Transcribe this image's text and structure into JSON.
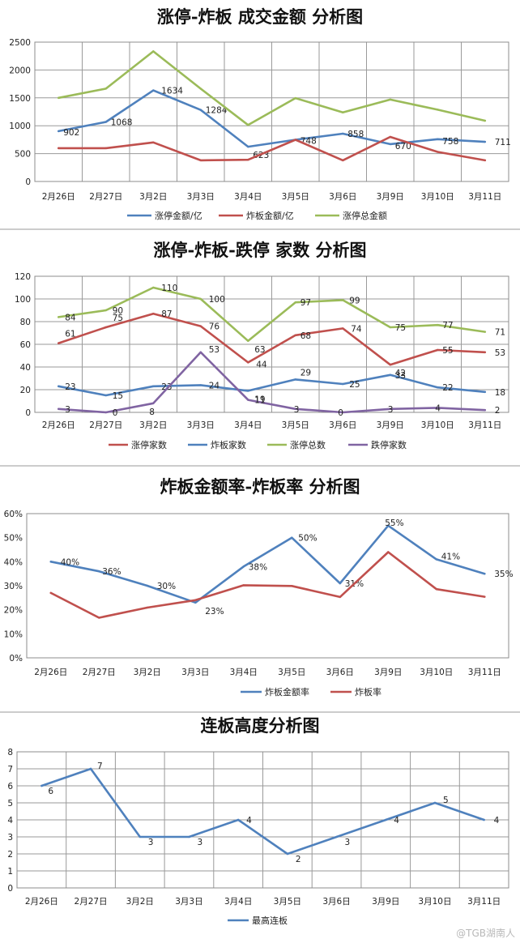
{
  "chart_data": [
    {
      "type": "line",
      "title": "涨停-炸板 成交金额 分析图",
      "categories": [
        "2月26日",
        "2月27日",
        "3月2日",
        "3月3日",
        "3月4日",
        "3月5日",
        "3月6日",
        "3月9日",
        "3月10日",
        "3月11日"
      ],
      "ylim": [
        0,
        2500
      ],
      "yticks": [
        0,
        500,
        1000,
        1500,
        2000,
        2500
      ],
      "ytick_labels": [
        "0",
        "500",
        "1000",
        "1500",
        "2000",
        "2500"
      ],
      "grid": true,
      "legend": "bottom",
      "series": [
        {
          "name": "涨停金额/亿",
          "color": "#4F81BD",
          "values": [
            902,
            1068,
            1634,
            1284,
            623,
            748,
            858,
            670,
            758,
            711
          ],
          "labels": [
            "902",
            "1068",
            "1634",
            "1284",
            "623",
            "748",
            "858",
            "670",
            "758",
            "711"
          ]
        },
        {
          "name": "炸板金额/亿",
          "color": "#C0504D",
          "values": [
            598,
            598,
            700,
            380,
            390,
            748,
            380,
            800,
            530,
            380
          ]
        },
        {
          "name": "涨停总金额",
          "color": "#9BBB59",
          "values": [
            1500,
            1666,
            2334,
            1664,
            1013,
            1496,
            1238,
            1470,
            1288,
            1090
          ]
        }
      ]
    },
    {
      "type": "line",
      "title": "涨停-炸板-跌停 家数 分析图",
      "categories": [
        "2月26日",
        "2月27日",
        "3月2日",
        "3月3日",
        "3月4日",
        "3月5日",
        "3月6日",
        "3月9日",
        "3月10日",
        "3月11日"
      ],
      "ylim": [
        0,
        120
      ],
      "yticks": [
        0,
        20,
        40,
        60,
        80,
        100,
        120
      ],
      "ytick_labels": [
        "0",
        "20",
        "40",
        "60",
        "80",
        "100",
        "120"
      ],
      "grid": true,
      "legend": "bottom",
      "series": [
        {
          "name": "涨停家数",
          "color": "#C0504D",
          "values": [
            61,
            75,
            87,
            76,
            44,
            68,
            74,
            42,
            55,
            53
          ],
          "labels": [
            "61",
            "75",
            "87",
            "76",
            "44",
            "68",
            "74",
            "42",
            "55",
            "53"
          ]
        },
        {
          "name": "炸板家数",
          "color": "#4F81BD",
          "values": [
            23,
            15,
            23,
            24,
            19,
            29,
            25,
            33,
            22,
            18
          ],
          "labels": [
            "23",
            "15",
            "23",
            "24",
            "19",
            "29",
            "25",
            "33",
            "22",
            "18"
          ]
        },
        {
          "name": "涨停总数",
          "color": "#9BBB59",
          "values": [
            84,
            90,
            110,
            100,
            63,
            97,
            99,
            75,
            77,
            71
          ],
          "labels": [
            "84",
            "90",
            "110",
            "100",
            "63",
            "97",
            "99",
            "75",
            "77",
            "71"
          ]
        },
        {
          "name": "跌停家数",
          "color": "#8064A2",
          "values": [
            3,
            0,
            8,
            53,
            11,
            3,
            0,
            3,
            4,
            2
          ],
          "labels": [
            "3",
            "0",
            "8",
            "53",
            "11",
            "3",
            "0",
            "3",
            "4",
            "2"
          ]
        }
      ]
    },
    {
      "type": "line",
      "title": "炸板金额率-炸板率 分析图",
      "categories": [
        "2月26日",
        "2月27日",
        "3月2日",
        "3月3日",
        "3月4日",
        "3月5日",
        "3月6日",
        "3月9日",
        "3月10日",
        "3月11日"
      ],
      "ylim": [
        0,
        60
      ],
      "yticks": [
        0,
        10,
        20,
        30,
        40,
        50,
        60
      ],
      "ytick_labels": [
        "0%",
        "10%",
        "20%",
        "30%",
        "40%",
        "50%",
        "60%"
      ],
      "grid": false,
      "legend": "bottom",
      "series": [
        {
          "name": "炸板金额率",
          "color": "#4F81BD",
          "values": [
            40,
            36,
            30,
            23,
            38,
            50,
            31,
            55,
            41,
            35
          ],
          "labels": [
            "40%",
            "36%",
            "30%",
            "23%",
            "38%",
            "50%",
            "31%",
            "55%",
            "41%",
            "35%"
          ]
        },
        {
          "name": "炸板率",
          "color": "#C0504D",
          "values": [
            27,
            16.7,
            20.9,
            24,
            30.2,
            29.9,
            25.3,
            44,
            28.6,
            25.4
          ]
        }
      ]
    },
    {
      "type": "line",
      "title": "连板高度分析图",
      "categories": [
        "2月26日",
        "2月27日",
        "3月2日",
        "3月3日",
        "3月4日",
        "3月5日",
        "3月6日",
        "3月9日",
        "3月10日",
        "3月11日"
      ],
      "ylim": [
        0,
        8
      ],
      "yticks": [
        0,
        1,
        2,
        3,
        4,
        5,
        6,
        7,
        8
      ],
      "ytick_labels": [
        "0",
        "1",
        "2",
        "3",
        "4",
        "5",
        "6",
        "7",
        "8"
      ],
      "grid": true,
      "legend": "bottom",
      "series": [
        {
          "name": "最高连板",
          "color": "#4F81BD",
          "values": [
            6,
            7,
            3,
            3,
            4,
            2,
            3,
            4,
            5,
            4
          ],
          "labels": [
            "6",
            "7",
            "3",
            "3",
            "4",
            "2",
            "3",
            "4",
            "5",
            "4"
          ]
        }
      ]
    }
  ],
  "watermark": "@TGB湖南人"
}
